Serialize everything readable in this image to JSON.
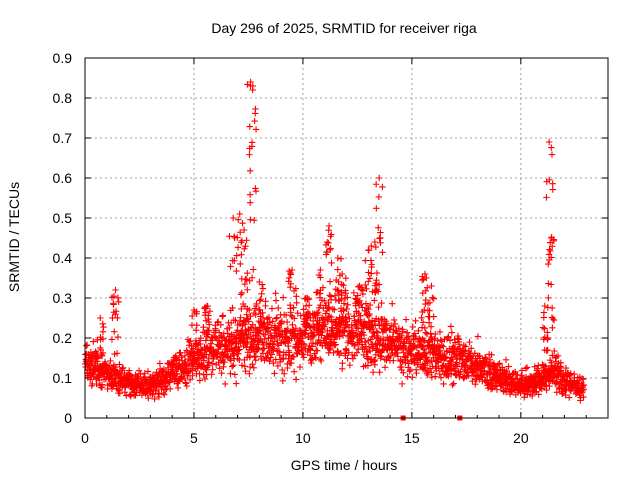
{
  "chart_data": {
    "type": "scatter",
    "title": "Day 296 of 2025, SRMTID for receiver riga",
    "xlabel": "GPS time / hours",
    "ylabel": "SRMTID / TECUs",
    "xlim": [
      0,
      24
    ],
    "ylim": [
      0,
      0.9
    ],
    "xticks": [
      0,
      5,
      10,
      15,
      20
    ],
    "yticks": [
      0,
      0.1,
      0.2,
      0.3,
      0.4,
      0.5,
      0.6,
      0.7,
      0.8,
      0.9
    ],
    "xtick_labels": [
      "0",
      "5",
      "10",
      "15",
      "20"
    ],
    "ytick_labels": [
      "0",
      "0.1",
      "0.2",
      "0.3",
      "0.4",
      "0.5",
      "0.6",
      "0.7",
      "0.8",
      "0.9"
    ],
    "grid": true,
    "marker": "plus",
    "color": "#ff0000",
    "data_extent_hours": [
      0,
      22.9
    ],
    "series": [
      {
        "name": "SRMTID",
        "baseline_profile": [
          [
            0,
            0.14
          ],
          [
            1,
            0.11
          ],
          [
            2,
            0.09
          ],
          [
            3,
            0.08
          ],
          [
            4,
            0.11
          ],
          [
            5,
            0.15
          ],
          [
            6,
            0.18
          ],
          [
            7,
            0.19
          ],
          [
            8,
            0.2
          ],
          [
            9,
            0.2
          ],
          [
            10,
            0.2
          ],
          [
            11,
            0.22
          ],
          [
            12,
            0.22
          ],
          [
            13,
            0.2
          ],
          [
            14,
            0.19
          ],
          [
            15,
            0.16
          ],
          [
            16,
            0.15
          ],
          [
            17,
            0.15
          ],
          [
            18,
            0.13
          ],
          [
            19,
            0.1
          ],
          [
            20,
            0.08
          ],
          [
            21,
            0.1
          ],
          [
            21.5,
            0.12
          ],
          [
            22,
            0.09
          ],
          [
            22.9,
            0.07
          ]
        ],
        "excursions": [
          [
            0.7,
            0.25
          ],
          [
            1.4,
            0.32
          ],
          [
            5.0,
            0.27
          ],
          [
            5.6,
            0.28
          ],
          [
            6.8,
            0.5
          ],
          [
            7.1,
            0.51
          ],
          [
            7.3,
            0.47
          ],
          [
            7.6,
            0.84
          ],
          [
            7.7,
            0.83
          ],
          [
            8.0,
            0.34
          ],
          [
            9.5,
            0.37
          ],
          [
            10.2,
            0.3
          ],
          [
            10.8,
            0.37
          ],
          [
            11.2,
            0.48
          ],
          [
            11.6,
            0.4
          ],
          [
            11.8,
            0.36
          ],
          [
            12.6,
            0.33
          ],
          [
            13.0,
            0.42
          ],
          [
            13.3,
            0.44
          ],
          [
            13.5,
            0.6
          ],
          [
            15.6,
            0.36
          ],
          [
            15.9,
            0.33
          ],
          [
            21.1,
            0.28
          ],
          [
            21.3,
            0.69
          ],
          [
            21.4,
            0.45
          ]
        ],
        "zero_points": [
          [
            14.6,
            0
          ],
          [
            17.2,
            0
          ]
        ]
      }
    ]
  }
}
